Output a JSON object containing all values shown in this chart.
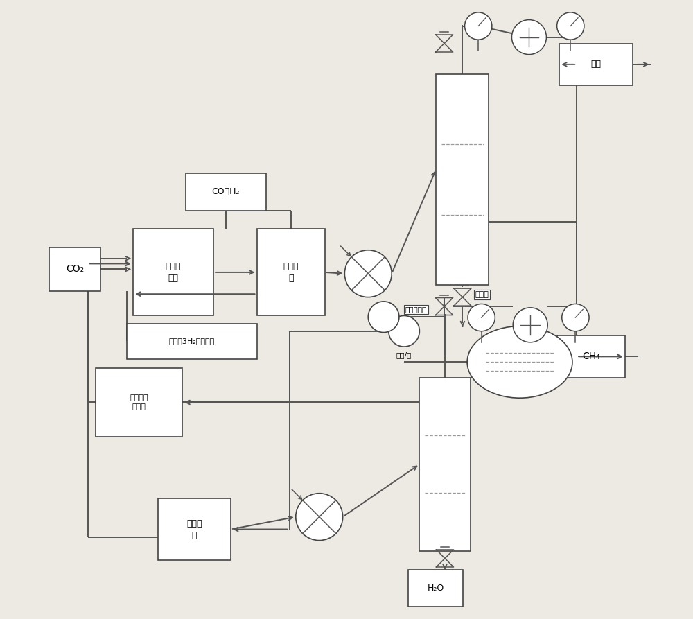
{
  "bg_color": "#ede9e3",
  "line_color": "#555555",
  "box_fill": "#ffffff",
  "box_edge": "#444444",
  "labels": {
    "CO2": "CO₂",
    "gasify": "气化反\n应器",
    "synMeOH": "合成甲\n醐",
    "CO_H2": "CO、H₂",
    "H2seed": "氢气（3H₂种子气）",
    "steamRef": "水蒸气重\n整制氢",
    "synMeth": "合成甲\n烷",
    "tail_gas": "尾气",
    "CH4": "CH₄",
    "H2O": "H₂O",
    "MeOHwater": "甲醐水",
    "MeOH_H2O": "甲醐/水",
    "tailcomp": "尾气压缩机"
  }
}
